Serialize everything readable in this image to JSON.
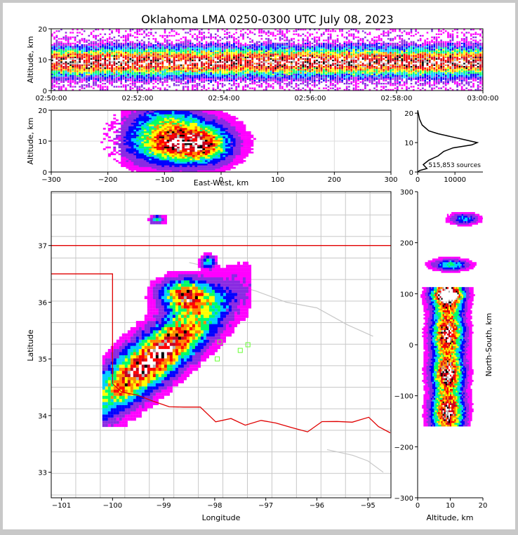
{
  "title": "Oklahoma LMA 0250-0300 UTC July 08, 2023",
  "sources_label": "515,853 sources",
  "colors": {
    "density_scale": [
      "#ff00ff",
      "#8a2be2",
      "#0000ff",
      "#00ccff",
      "#00ff66",
      "#ffff00",
      "#ff8800",
      "#ff0000",
      "#c00020",
      "#000000",
      "#ffffff"
    ],
    "state_border": "#e00000",
    "county_lines": "#c8c8c8",
    "network_stations": "#66ff33"
  },
  "chart_data": [
    {
      "id": "time-altitude",
      "type": "heatmap",
      "ylabel": "Altitude, km",
      "xlim": [
        "02:50:00",
        "03:00:00"
      ],
      "ylim": [
        0,
        20
      ],
      "x_ticks": [
        "02:50:00",
        "02:52:00",
        "02:54:00",
        "02:56:00",
        "02:58:00",
        "03:00:00"
      ],
      "y_ticks": [
        "0",
        "10",
        "20"
      ],
      "description_values": {
        "peak_altitude_km": 9,
        "altitude_band_km": [
          2,
          18
        ]
      }
    },
    {
      "id": "east-west-altitude",
      "type": "heatmap",
      "xlabel": "East-West, km",
      "ylabel": "Altitude, km",
      "xlim": [
        -300,
        300
      ],
      "ylim": [
        0,
        20
      ],
      "x_ticks": [
        "−300",
        "−200",
        "−100",
        "0",
        "100",
        "200",
        "300"
      ],
      "y_ticks": [
        "0",
        "10",
        "20"
      ],
      "grid": true
    },
    {
      "id": "altitude-histogram",
      "type": "line",
      "xlim": [
        0,
        17500
      ],
      "ylim": [
        0,
        21
      ],
      "x_ticks": [
        "0",
        "10000"
      ],
      "y_ticks": [
        "0",
        "10",
        "20"
      ],
      "x": [
        0,
        500,
        2500,
        1500,
        3000,
        5500,
        7000,
        9500,
        14500,
        16000,
        12500,
        9000,
        5500,
        3000,
        1200,
        500,
        0
      ],
      "y": [
        0,
        0.5,
        1.2,
        2.5,
        4,
        5.5,
        7,
        8.2,
        9.2,
        10,
        11,
        12,
        13,
        14,
        16,
        18,
        21
      ]
    },
    {
      "id": "plan-view",
      "type": "heatmap",
      "xlabel": "Longitude",
      "ylabel": "Latitude",
      "xlim": [
        -101.2,
        -94.55
      ],
      "ylim": [
        32.55,
        37.95
      ],
      "x_ticks": [
        "−101",
        "−100",
        "−99",
        "−98",
        "−97",
        "−96",
        "−95"
      ],
      "y_ticks": [
        "33",
        "34",
        "35",
        "36",
        "37"
      ]
    },
    {
      "id": "altitude-north-south",
      "type": "heatmap",
      "xlabel": "Altitude, km",
      "ylabel": "North-South, km",
      "xlim": [
        0,
        20
      ],
      "ylim": [
        -300,
        300
      ],
      "x_ticks": [
        "0",
        "10",
        "20"
      ],
      "y_ticks": [
        "−300",
        "−200",
        "−100",
        "0",
        "100",
        "200",
        "300"
      ]
    }
  ]
}
